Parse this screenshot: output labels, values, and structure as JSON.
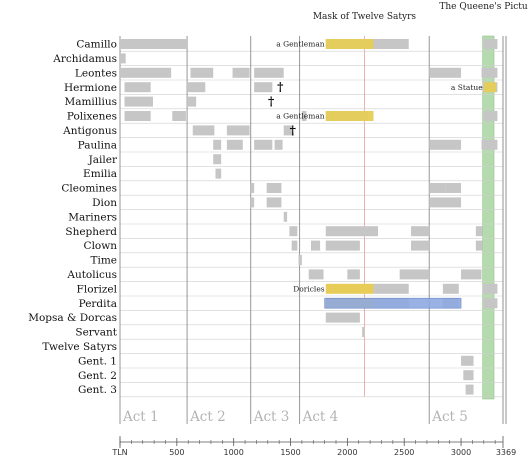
{
  "chart_data": {
    "type": "timeline",
    "x_axis_label": "TLN",
    "x_ticks": [
      0,
      500,
      1000,
      1500,
      2000,
      2500,
      3000
    ],
    "x_end": 3369,
    "characters": [
      "Camillo",
      "Archidamus",
      "Leontes",
      "Hermione",
      "Mamillius",
      "Polixenes",
      "Antigonus",
      "Paulina",
      "Jailer",
      "Emilia",
      "Cleomines",
      "Dion",
      "Mariners",
      "Shepherd",
      "Clown",
      "Time",
      "Autolicus",
      "Florizel",
      "Perdita",
      "Mopsa & Dorcas",
      "Servant",
      "Twelve Satyrs",
      "Gent. 1",
      "Gent. 2",
      "Gent. 3"
    ],
    "acts": [
      {
        "label": "Act 1",
        "start": 0
      },
      {
        "label": "Act 2",
        "start": 590
      },
      {
        "label": "Act 3",
        "start": 1150
      },
      {
        "label": "Act 4",
        "start": 1580
      },
      {
        "label": "Act 5",
        "start": 2720
      }
    ],
    "segments": [
      {
        "character": 0,
        "start": 0,
        "end": 590,
        "style": "gray"
      },
      {
        "character": 0,
        "start": 1810,
        "end": 2540,
        "style": "gray"
      },
      {
        "character": 0,
        "start": 3200,
        "end": 3320,
        "style": "gray"
      },
      {
        "character": 1,
        "start": 0,
        "end": 50,
        "style": "gray"
      },
      {
        "character": 2,
        "start": 0,
        "end": 450,
        "style": "gray"
      },
      {
        "character": 2,
        "start": 620,
        "end": 820,
        "style": "gray"
      },
      {
        "character": 2,
        "start": 990,
        "end": 1140,
        "style": "gray"
      },
      {
        "character": 2,
        "start": 1180,
        "end": 1440,
        "style": "gray"
      },
      {
        "character": 2,
        "start": 2720,
        "end": 3000,
        "style": "gray"
      },
      {
        "character": 2,
        "start": 3180,
        "end": 3320,
        "style": "gray"
      },
      {
        "character": 3,
        "start": 40,
        "end": 270,
        "style": "gray"
      },
      {
        "character": 3,
        "start": 590,
        "end": 750,
        "style": "gray"
      },
      {
        "character": 3,
        "start": 1180,
        "end": 1340,
        "style": "gray"
      },
      {
        "character": 3,
        "start": 3190,
        "end": 3320,
        "style": "gray"
      },
      {
        "character": 4,
        "start": 40,
        "end": 290,
        "style": "gray"
      },
      {
        "character": 4,
        "start": 590,
        "end": 670,
        "style": "gray"
      },
      {
        "character": 5,
        "start": 40,
        "end": 270,
        "style": "gray"
      },
      {
        "character": 5,
        "start": 460,
        "end": 580,
        "style": "gray"
      },
      {
        "character": 5,
        "start": 1600,
        "end": 1640,
        "style": "gray"
      },
      {
        "character": 5,
        "start": 1810,
        "end": 2180,
        "style": "gray"
      },
      {
        "character": 5,
        "start": 3200,
        "end": 3320,
        "style": "gray"
      },
      {
        "character": 6,
        "start": 640,
        "end": 830,
        "style": "gray"
      },
      {
        "character": 6,
        "start": 940,
        "end": 1140,
        "style": "gray"
      },
      {
        "character": 6,
        "start": 1440,
        "end": 1520,
        "style": "gray"
      },
      {
        "character": 7,
        "start": 820,
        "end": 890,
        "style": "gray"
      },
      {
        "character": 7,
        "start": 940,
        "end": 1080,
        "style": "gray"
      },
      {
        "character": 7,
        "start": 1180,
        "end": 1340,
        "style": "gray"
      },
      {
        "character": 7,
        "start": 1360,
        "end": 1430,
        "style": "gray"
      },
      {
        "character": 7,
        "start": 2720,
        "end": 3000,
        "style": "gray"
      },
      {
        "character": 7,
        "start": 3180,
        "end": 3320,
        "style": "gray"
      },
      {
        "character": 8,
        "start": 820,
        "end": 890,
        "style": "gray"
      },
      {
        "character": 9,
        "start": 840,
        "end": 890,
        "style": "gray"
      },
      {
        "character": 10,
        "start": 1150,
        "end": 1180,
        "style": "gray"
      },
      {
        "character": 10,
        "start": 1290,
        "end": 1420,
        "style": "gray"
      },
      {
        "character": 10,
        "start": 2720,
        "end": 2860,
        "style": "gray"
      },
      {
        "character": 10,
        "start": 2860,
        "end": 3000,
        "style": "gray"
      },
      {
        "character": 11,
        "start": 1150,
        "end": 1180,
        "style": "gray"
      },
      {
        "character": 11,
        "start": 1290,
        "end": 1420,
        "style": "gray"
      },
      {
        "character": 11,
        "start": 2720,
        "end": 3000,
        "style": "gray"
      },
      {
        "character": 12,
        "start": 1440,
        "end": 1470,
        "style": "gray"
      },
      {
        "character": 13,
        "start": 1490,
        "end": 1560,
        "style": "gray"
      },
      {
        "character": 13,
        "start": 1810,
        "end": 2270,
        "style": "gray"
      },
      {
        "character": 13,
        "start": 2560,
        "end": 2720,
        "style": "gray"
      },
      {
        "character": 13,
        "start": 3130,
        "end": 3190,
        "style": "gray"
      },
      {
        "character": 14,
        "start": 1510,
        "end": 1560,
        "style": "gray"
      },
      {
        "character": 14,
        "start": 1680,
        "end": 1760,
        "style": "gray"
      },
      {
        "character": 14,
        "start": 1810,
        "end": 2110,
        "style": "gray"
      },
      {
        "character": 14,
        "start": 2560,
        "end": 2720,
        "style": "gray"
      },
      {
        "character": 14,
        "start": 3130,
        "end": 3190,
        "style": "gray"
      },
      {
        "character": 15,
        "start": 1570,
        "end": 1600,
        "style": "gray"
      },
      {
        "character": 16,
        "start": 1660,
        "end": 1790,
        "style": "gray"
      },
      {
        "character": 16,
        "start": 2000,
        "end": 2110,
        "style": "gray"
      },
      {
        "character": 16,
        "start": 2460,
        "end": 2720,
        "style": "gray"
      },
      {
        "character": 16,
        "start": 3000,
        "end": 3180,
        "style": "gray"
      },
      {
        "character": 17,
        "start": 1810,
        "end": 2230,
        "style": "yellow"
      },
      {
        "character": 17,
        "start": 2230,
        "end": 2540,
        "style": "gray"
      },
      {
        "character": 17,
        "start": 2840,
        "end": 2980,
        "style": "gray"
      },
      {
        "character": 17,
        "start": 3190,
        "end": 3320,
        "style": "gray"
      },
      {
        "character": 18,
        "start": 1810,
        "end": 2230,
        "style": "yellow"
      },
      {
        "character": 18,
        "start": 2230,
        "end": 2540,
        "style": "gray"
      },
      {
        "character": 18,
        "start": 2840,
        "end": 2980,
        "style": "gray"
      },
      {
        "character": 18,
        "start": 3200,
        "end": 3320,
        "style": "gray"
      },
      {
        "character": 19,
        "start": 1810,
        "end": 2110,
        "style": "gray"
      },
      {
        "character": 20,
        "start": 2130,
        "end": 2150,
        "style": "gray"
      },
      {
        "character": 22,
        "start": 3000,
        "end": 3110,
        "style": "gray"
      },
      {
        "character": 23,
        "start": 3020,
        "end": 3110,
        "style": "gray"
      },
      {
        "character": 24,
        "start": 3040,
        "end": 3110,
        "style": "gray"
      }
    ],
    "yellow_overlays": [
      {
        "character": 0,
        "start": 1810,
        "end": 2230
      },
      {
        "character": 5,
        "start": 1810,
        "end": 2230
      },
      {
        "character": 3,
        "start": 3200,
        "end": 3310
      }
    ],
    "blue_bar": {
      "character": 18,
      "start": 1800,
      "end": 3000
    },
    "green_band": {
      "start": 3190,
      "end": 3290
    },
    "red_line": {
      "x": 2150
    },
    "annotations": [
      {
        "character": 0,
        "x": 1800,
        "text": "a Gentleman"
      },
      {
        "character": 5,
        "x": 1800,
        "text": "a Gentleman"
      },
      {
        "character": 3,
        "x": 3190,
        "text": "a Statue"
      },
      {
        "character": 17,
        "x": 1800,
        "text": "Doricles"
      }
    ],
    "daggers": [
      {
        "character": 3,
        "x": 1410
      },
      {
        "character": 4,
        "x": 1330
      },
      {
        "character": 6,
        "x": 1520
      }
    ],
    "top_labels": [
      {
        "text": "Mask of Twelve Satyrs",
        "x": 2150,
        "level": 1
      },
      {
        "text": "The Queene's Picture",
        "x": 3240,
        "level": 0
      }
    ],
    "colors": {
      "segment": "#c6c6c6",
      "yellow": "#e7cd57",
      "blue": "#8ea9e0",
      "green": "#a9d4a1",
      "red_line": "#e8a0a0",
      "grid": "#cfcfcf",
      "act_line": "#8c8c8c"
    }
  }
}
